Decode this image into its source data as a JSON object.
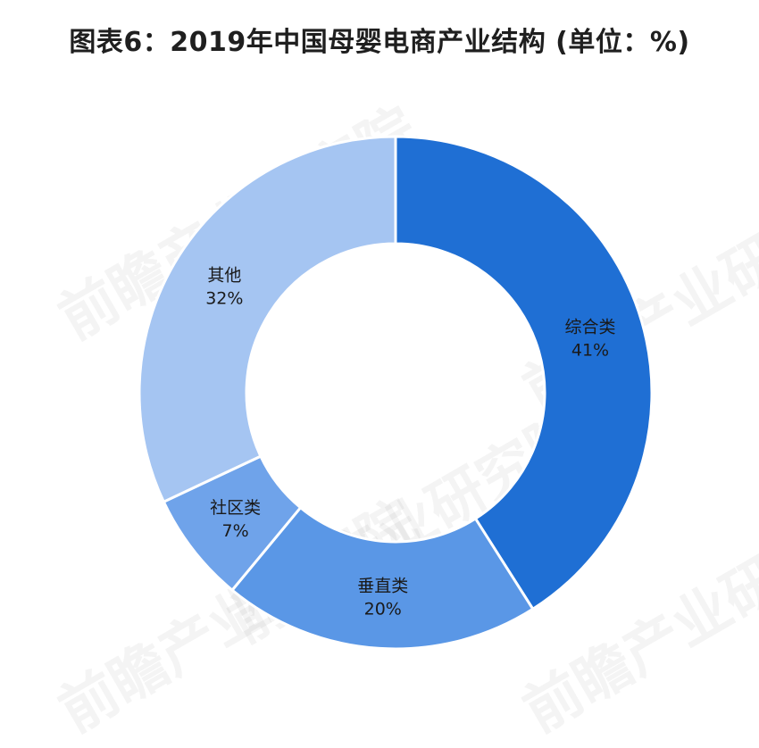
{
  "title": "图表6：2019年中国母婴电商产业结构 (单位：%)",
  "watermark": "前瞻产业研究院",
  "chart_data": {
    "type": "pie",
    "style": "donut",
    "title": "图表6：2019年中国母婴电商产业结构 (单位：%)",
    "categories": [
      "综合类",
      "垂直类",
      "社区类",
      "其他"
    ],
    "values": [
      41,
      20,
      7,
      32
    ],
    "value_labels": [
      "41%",
      "20%",
      "7%",
      "32%"
    ],
    "colors": [
      "#1f6fd4",
      "#5a97e6",
      "#6fa3ea",
      "#a5c5f2"
    ],
    "start_angle": "12 o'clock",
    "direction": "clockwise",
    "legend": "none"
  }
}
